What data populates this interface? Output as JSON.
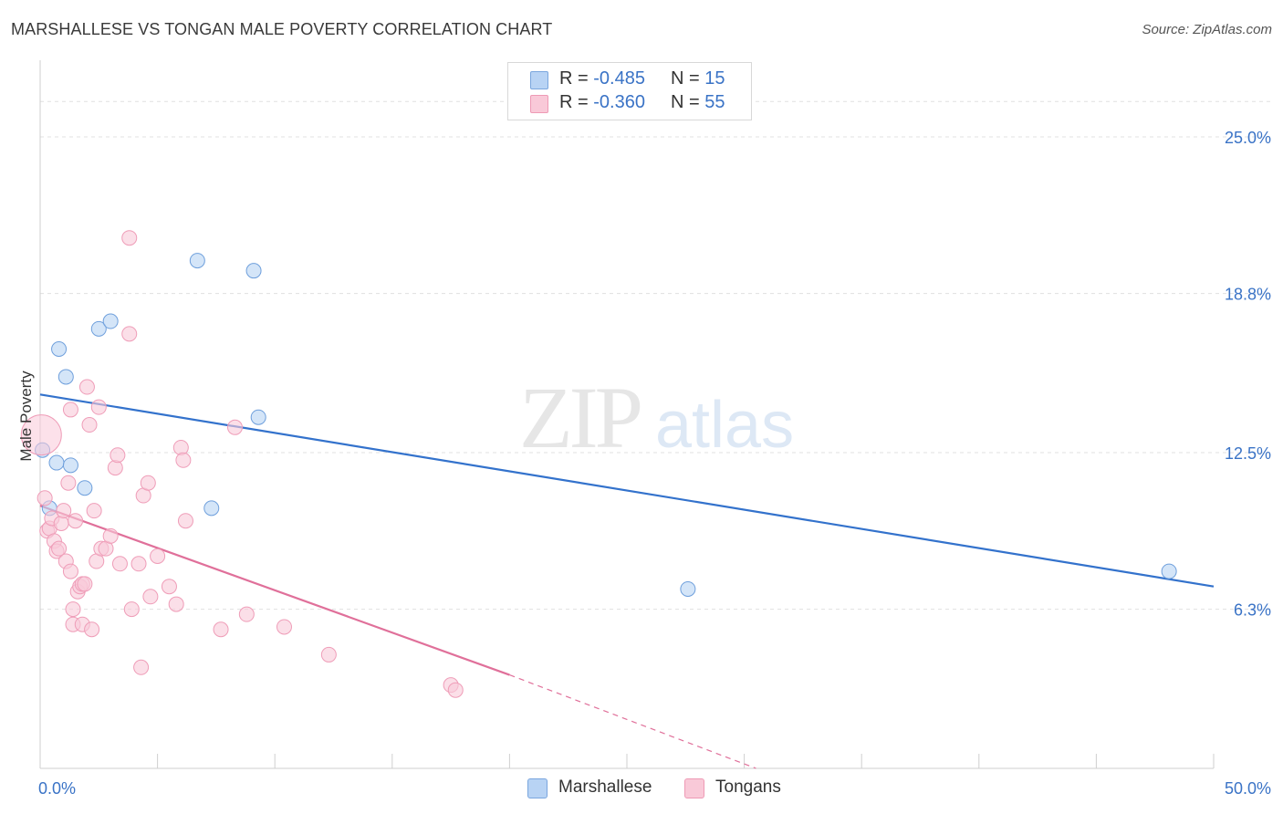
{
  "title": "MARSHALLESE VS TONGAN MALE POVERTY CORRELATION CHART",
  "source": "Source: ZipAtlas.com",
  "watermark": {
    "zip": "ZIP",
    "atlas": "atlas"
  },
  "legend_top": {
    "rows": [
      {
        "r_label": "R = ",
        "r_value": "-0.485",
        "n_label": "N = ",
        "n_value": "15",
        "color": "#b8d3f4",
        "border": "#7aa6de"
      },
      {
        "r_label": "R = ",
        "r_value": "-0.360",
        "n_label": "N = ",
        "n_value": "55",
        "color": "#f9c9d8",
        "border": "#ee9ab5"
      }
    ]
  },
  "legend_bottom": [
    {
      "label": "Marshallese",
      "color": "#b8d3f4",
      "border": "#7aa6de"
    },
    {
      "label": "Tongans",
      "color": "#f9c9d8",
      "border": "#ee9ab5"
    }
  ],
  "chart_data": {
    "type": "scatter",
    "title": "MARSHALLESE VS TONGAN MALE POVERTY CORRELATION CHART",
    "xlabel": "",
    "ylabel": "Male Poverty",
    "xlim": [
      0,
      50
    ],
    "ylim": [
      0,
      27.6
    ],
    "x_tick_labels": [
      {
        "value": 0,
        "label": "0.0%"
      },
      {
        "value": 50,
        "label": "50.0%"
      }
    ],
    "y_tick_labels": [
      {
        "value": 6.3,
        "label": "6.3%"
      },
      {
        "value": 12.5,
        "label": "12.5%"
      },
      {
        "value": 18.8,
        "label": "18.8%"
      },
      {
        "value": 25.0,
        "label": "25.0%"
      }
    ],
    "y_grid": [
      6.3,
      12.5,
      18.8,
      25.0,
      26.4
    ],
    "x_minor_ticks": [
      0,
      5,
      10,
      15,
      20,
      25,
      30,
      35,
      40,
      45,
      50
    ],
    "series": [
      {
        "name": "Marshallese",
        "color": "#b8d3f4",
        "stroke": "#6e9fdc",
        "line_color": "#3372cc",
        "trend": {
          "x0": 0,
          "y0": 14.8,
          "x1": 50,
          "y1": 7.2
        },
        "points": [
          {
            "x": 0.1,
            "y": 12.6
          },
          {
            "x": 0.4,
            "y": 10.3
          },
          {
            "x": 0.7,
            "y": 12.1
          },
          {
            "x": 0.8,
            "y": 16.6
          },
          {
            "x": 1.1,
            "y": 15.5
          },
          {
            "x": 1.3,
            "y": 12.0
          },
          {
            "x": 1.9,
            "y": 11.1
          },
          {
            "x": 2.5,
            "y": 17.4
          },
          {
            "x": 3.0,
            "y": 17.7
          },
          {
            "x": 6.7,
            "y": 20.1
          },
          {
            "x": 9.1,
            "y": 19.7
          },
          {
            "x": 9.3,
            "y": 13.9
          },
          {
            "x": 7.3,
            "y": 10.3
          },
          {
            "x": 27.6,
            "y": 7.1
          },
          {
            "x": 48.1,
            "y": 7.8
          }
        ]
      },
      {
        "name": "Tongans",
        "color": "#f9c9d8",
        "stroke": "#ef9db8",
        "line_color": "#e0709a",
        "trend": {
          "x0": 0,
          "y0": 10.4,
          "x1": 20.0,
          "y1": 3.7
        },
        "trend_dashed": {
          "x0": 20.0,
          "y0": 3.7,
          "x1": 30.5,
          "y1": 0.0
        },
        "points": [
          {
            "x": 0.05,
            "y": 13.2,
            "big": true
          },
          {
            "x": 0.2,
            "y": 10.7
          },
          {
            "x": 0.3,
            "y": 9.4
          },
          {
            "x": 0.4,
            "y": 9.5
          },
          {
            "x": 0.5,
            "y": 9.9
          },
          {
            "x": 0.6,
            "y": 9.0
          },
          {
            "x": 0.7,
            "y": 8.6
          },
          {
            "x": 0.8,
            "y": 8.7
          },
          {
            "x": 0.9,
            "y": 9.7
          },
          {
            "x": 1.0,
            "y": 10.2
          },
          {
            "x": 1.1,
            "y": 8.2
          },
          {
            "x": 1.2,
            "y": 11.3
          },
          {
            "x": 1.3,
            "y": 7.8
          },
          {
            "x": 1.3,
            "y": 14.2
          },
          {
            "x": 1.4,
            "y": 6.3
          },
          {
            "x": 1.4,
            "y": 5.7
          },
          {
            "x": 1.5,
            "y": 9.8
          },
          {
            "x": 1.6,
            "y": 7.0
          },
          {
            "x": 1.7,
            "y": 7.2
          },
          {
            "x": 1.8,
            "y": 7.3
          },
          {
            "x": 1.8,
            "y": 5.7
          },
          {
            "x": 1.9,
            "y": 7.3
          },
          {
            "x": 2.0,
            "y": 15.1
          },
          {
            "x": 2.1,
            "y": 13.6
          },
          {
            "x": 2.2,
            "y": 5.5
          },
          {
            "x": 2.3,
            "y": 10.2
          },
          {
            "x": 2.4,
            "y": 8.2
          },
          {
            "x": 2.5,
            "y": 14.3
          },
          {
            "x": 2.6,
            "y": 8.7
          },
          {
            "x": 2.8,
            "y": 8.7
          },
          {
            "x": 3.0,
            "y": 9.2
          },
          {
            "x": 3.2,
            "y": 11.9
          },
          {
            "x": 3.3,
            "y": 12.4
          },
          {
            "x": 3.4,
            "y": 8.1
          },
          {
            "x": 3.8,
            "y": 21.0
          },
          {
            "x": 3.8,
            "y": 17.2
          },
          {
            "x": 3.9,
            "y": 6.3
          },
          {
            "x": 4.2,
            "y": 8.1
          },
          {
            "x": 4.3,
            "y": 4.0
          },
          {
            "x": 4.4,
            "y": 10.8
          },
          {
            "x": 4.6,
            "y": 11.3
          },
          {
            "x": 4.7,
            "y": 6.8
          },
          {
            "x": 5.0,
            "y": 8.4
          },
          {
            "x": 5.5,
            "y": 7.2
          },
          {
            "x": 5.8,
            "y": 6.5
          },
          {
            "x": 6.0,
            "y": 12.7
          },
          {
            "x": 6.1,
            "y": 12.2
          },
          {
            "x": 6.2,
            "y": 9.8
          },
          {
            "x": 7.7,
            "y": 5.5
          },
          {
            "x": 8.3,
            "y": 13.5
          },
          {
            "x": 8.8,
            "y": 6.1
          },
          {
            "x": 10.4,
            "y": 5.6
          },
          {
            "x": 12.3,
            "y": 4.5
          },
          {
            "x": 17.5,
            "y": 3.3
          },
          {
            "x": 17.7,
            "y": 3.1
          }
        ]
      }
    ]
  }
}
